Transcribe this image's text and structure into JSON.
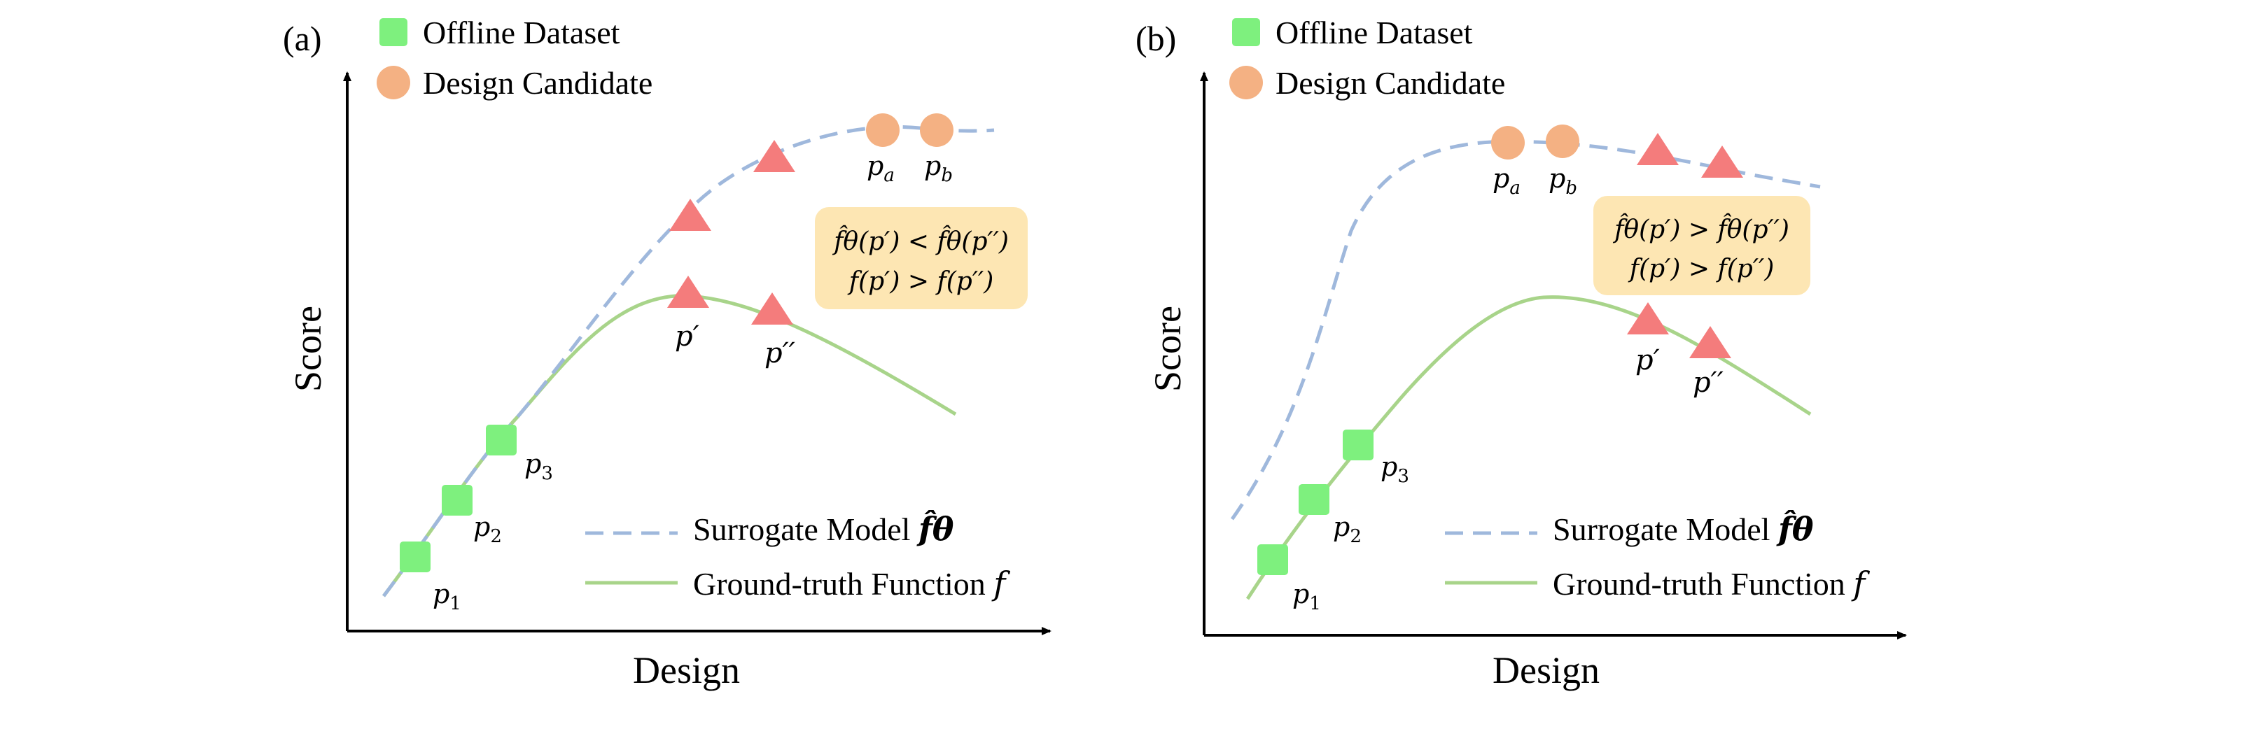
{
  "panels": [
    {
      "id": "a",
      "label": "(a)",
      "legend_top": [
        {
          "marker": "square",
          "text": "Offline Dataset"
        },
        {
          "marker": "circle",
          "text": "Design Candidate"
        }
      ],
      "y_axis_label": "Score",
      "x_axis_label": "Design",
      "point_labels": {
        "p1": {
          "base": "p",
          "sub": "1"
        },
        "p2": {
          "base": "p",
          "sub": "2"
        },
        "p3": {
          "base": "p",
          "sub": "3"
        },
        "pa": {
          "base": "p",
          "sub": "a"
        },
        "pb": {
          "base": "p",
          "sub": "b"
        },
        "p_prime": "p′",
        "p_dprime": "p′′"
      },
      "inequality_box": {
        "line1": "f̂θ(p′) < f̂θ(p′′)",
        "line2": "f(p′) > f(p′′)"
      },
      "legend_bottom": {
        "surrogate": "Surrogate Model",
        "surrogate_symbol": "f̂θ",
        "groundtruth": "Ground-truth Function",
        "groundtruth_symbol": "f"
      }
    },
    {
      "id": "b",
      "label": "(b)",
      "legend_top": [
        {
          "marker": "square",
          "text": "Offline Dataset"
        },
        {
          "marker": "circle",
          "text": "Design Candidate"
        }
      ],
      "y_axis_label": "Score",
      "x_axis_label": "Design",
      "point_labels": {
        "p1": {
          "base": "p",
          "sub": "1"
        },
        "p2": {
          "base": "p",
          "sub": "2"
        },
        "p3": {
          "base": "p",
          "sub": "3"
        },
        "pa": {
          "base": "p",
          "sub": "a"
        },
        "pb": {
          "base": "p",
          "sub": "b"
        },
        "p_prime": "p′",
        "p_dprime": "p′′"
      },
      "inequality_box": {
        "line1": "f̂θ(p′) > f̂θ(p′′)",
        "line2": "f(p′) > f(p′′)"
      },
      "legend_bottom": {
        "surrogate": "Surrogate Model",
        "surrogate_symbol": "f̂θ",
        "groundtruth": "Ground-truth Function",
        "groundtruth_symbol": "f"
      }
    }
  ],
  "colors": {
    "offline_dataset": "#7ef07e",
    "design_candidate": "#f4b183",
    "triangle": "#f47c7c",
    "surrogate_curve": "#9fb8dc",
    "groundtruth_curve": "#a8d48a",
    "inequality_box_fill": "#fde6b3",
    "axis": "#000000"
  },
  "icons": {
    "offline_dataset": "green-square-marker-icon",
    "design_candidate": "orange-circle-marker-icon",
    "query_point": "red-triangle-marker-icon"
  }
}
